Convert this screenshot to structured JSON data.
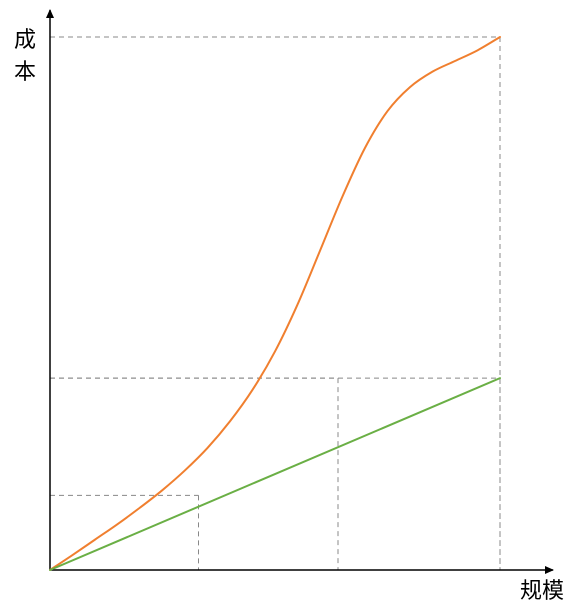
{
  "chart_data": {
    "type": "line",
    "title": "",
    "xlabel": "规模",
    "ylabel": "成本",
    "xlim": [
      0,
      100
    ],
    "ylim": [
      0,
      100
    ],
    "grid": false,
    "legend": "none",
    "series": [
      {
        "color": "#f07f2f",
        "x": [
          0,
          5,
          10,
          15,
          20,
          25,
          30,
          35,
          40,
          45,
          50,
          55,
          60,
          65,
          70,
          75,
          80,
          85,
          90,
          95,
          100
        ],
        "y": [
          0,
          2.8,
          5.7,
          8.6,
          11.7,
          15.0,
          18.7,
          22.9,
          27.9,
          33.8,
          41.0,
          49.8,
          59.9,
          70.1,
          79.2,
          86.1,
          90.6,
          93.5,
          95.5,
          97.5,
          100
        ]
      },
      {
        "color": "#6aaf45",
        "x": [
          0,
          100
        ],
        "y": [
          0,
          36
        ]
      }
    ],
    "reference_points": [
      {
        "x": 33,
        "y": 14
      },
      {
        "x": 64,
        "y": 36
      },
      {
        "x": 100,
        "y": 100
      },
      {
        "x": 100,
        "y": 36
      }
    ],
    "colors": {
      "axis": "#000000",
      "guide": "#888888"
    }
  }
}
